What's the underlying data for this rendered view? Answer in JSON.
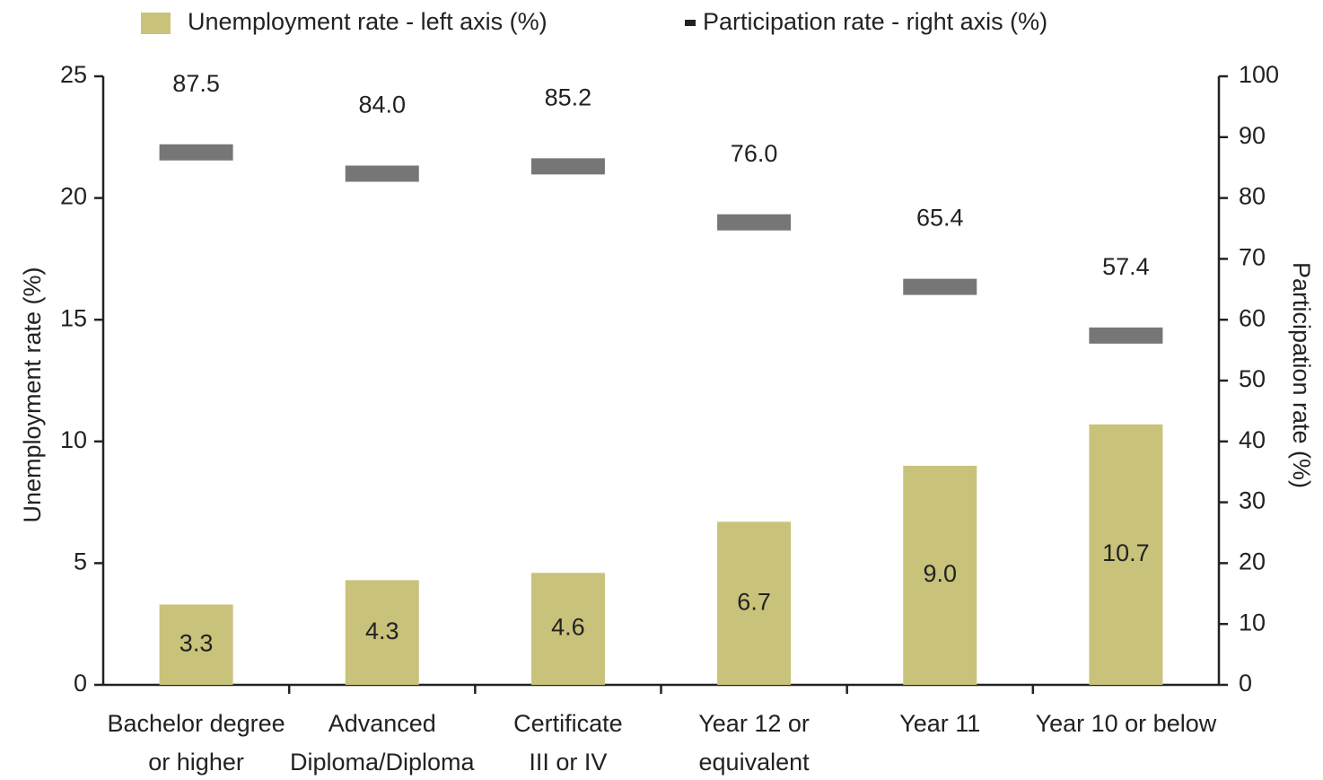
{
  "chart_data": {
    "type": "bar-marker",
    "categories": [
      [
        "Bachelor degree",
        "or higher"
      ],
      [
        "Advanced",
        "Diploma/Diploma"
      ],
      [
        "Certificate",
        "III or IV"
      ],
      [
        "Year 12 or",
        "equivalent"
      ],
      [
        "Year 11"
      ],
      [
        "Year 10 or below"
      ]
    ],
    "series": [
      {
        "name": "Unemployment rate - left axis (%)",
        "color": "#c9c27a",
        "axis": "y",
        "kind": "bar",
        "values": [
          3.3,
          4.3,
          4.6,
          6.7,
          9.0,
          10.7
        ],
        "value_labels": [
          "3.3",
          "4.3",
          "4.6",
          "6.7",
          "9.0",
          "10.7"
        ]
      },
      {
        "name": "Participation rate - right axis (%)",
        "color": "#767676",
        "axis": "y2",
        "kind": "marker",
        "values": [
          87.5,
          84.0,
          85.2,
          76.0,
          65.4,
          57.4
        ],
        "value_labels": [
          "87.5",
          "84.0",
          "85.2",
          "76.0",
          "65.4",
          "57.4"
        ]
      }
    ],
    "ylabel": "Unemployment rate (%)",
    "y2label": "Participation rate (%)",
    "ylim": [
      0,
      25
    ],
    "yticks": [
      0,
      5,
      10,
      15,
      20,
      25
    ],
    "y2lim": [
      0,
      100
    ],
    "y2ticks": [
      0,
      10,
      20,
      30,
      40,
      50,
      60,
      70,
      80,
      90,
      100
    ],
    "legend": "top"
  }
}
